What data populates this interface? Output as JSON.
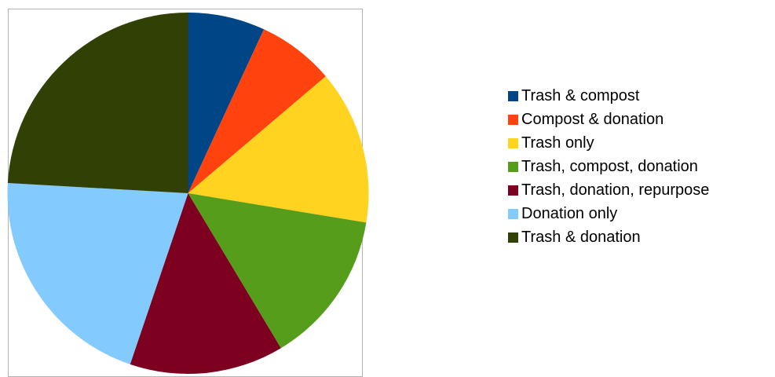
{
  "chart_data": {
    "type": "pie",
    "title": "",
    "legend_position": "right",
    "start_angle_deg": 0,
    "direction": "clockwise",
    "slices": [
      {
        "label": "Trash & compost",
        "value": 6.9,
        "color": "#004586"
      },
      {
        "label": "Compost & donation",
        "value": 6.9,
        "color": "#ff420e"
      },
      {
        "label": "Trash only",
        "value": 13.8,
        "color": "#ffd320"
      },
      {
        "label": "Trash, compost, donation",
        "value": 13.8,
        "color": "#579d1c"
      },
      {
        "label": "Trash, donation, repurpose",
        "value": 13.8,
        "color": "#7e0021"
      },
      {
        "label": "Donation only",
        "value": 20.7,
        "color": "#83caff"
      },
      {
        "label": "Trash & donation",
        "value": 24.1,
        "color": "#314004"
      }
    ]
  }
}
